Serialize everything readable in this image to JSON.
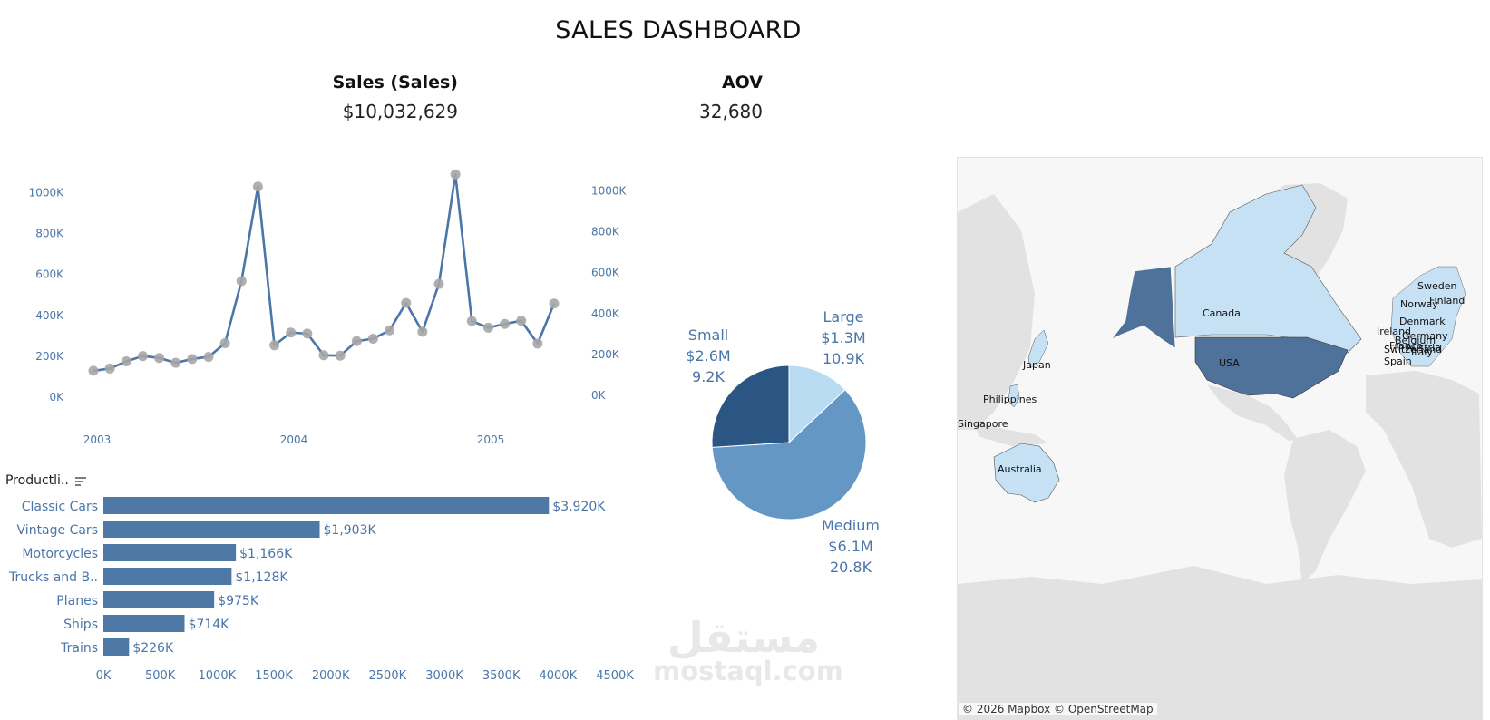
{
  "dashboard": {
    "title": "SALES DASHBOARD"
  },
  "kpis": [
    {
      "label": "Sales (Sales)",
      "value": "$10,032,629"
    },
    {
      "label": "AOV",
      "value": "32,680"
    }
  ],
  "colors": {
    "line": "#4a76a8",
    "marker": "#a6a6a6",
    "axis_text": "#4a76a8",
    "bar": "#4e79a7",
    "pie_large": "#b9dcf2",
    "pie_medium": "#6497c4",
    "pie_small": "#2b5683",
    "map_land": "#e2e2e2",
    "map_light": "#c6e1f4",
    "map_dark": "#4f729a"
  },
  "chart_data": [
    {
      "type": "line",
      "x_tick_labels": [
        "2003",
        "2004",
        "2005"
      ],
      "y_tick_labels_left": [
        "0K",
        "200K",
        "400K",
        "600K",
        "800K",
        "1000K"
      ],
      "y_tick_labels_right": [
        "0K",
        "200K",
        "400K",
        "600K",
        "800K",
        "1000K"
      ],
      "ylim": [
        0,
        1100000
      ],
      "grid": false,
      "series": [
        {
          "x": [
            "2003-01",
            "2003-02",
            "2003-03",
            "2003-04",
            "2003-05",
            "2003-06",
            "2003-07",
            "2003-08",
            "2003-09",
            "2003-10",
            "2003-11",
            "2003-12",
            "2004-01",
            "2004-02",
            "2004-03",
            "2004-04",
            "2004-05",
            "2004-06",
            "2004-07",
            "2004-08",
            "2004-09",
            "2004-10",
            "2004-11",
            "2004-12",
            "2005-01",
            "2005-02",
            "2005-03",
            "2005-04",
            "2005-05"
          ],
          "values": [
            129000,
            140000,
            175000,
            201000,
            192000,
            168000,
            187000,
            197000,
            264000,
            568000,
            1030000,
            254000,
            316000,
            311000,
            205000,
            203000,
            274000,
            286000,
            327000,
            461000,
            320000,
            554000,
            1090000,
            372000,
            340000,
            358000,
            374000,
            262000,
            458000
          ]
        }
      ]
    },
    {
      "type": "pie",
      "slices": [
        {
          "label": "Large",
          "sales": "$1.3M",
          "count": "10.9K",
          "value": 1.3
        },
        {
          "label": "Medium",
          "sales": "$6.1M",
          "count": "20.8K",
          "value": 6.1
        },
        {
          "label": "Small",
          "sales": "$2.6M",
          "count": "9.2K",
          "value": 2.6
        }
      ]
    },
    {
      "type": "bar",
      "orientation": "horizontal",
      "dimension_label": "Productli..",
      "categories": [
        "Classic Cars",
        "Vintage Cars",
        "Motorcycles",
        "Trucks and B..",
        "Planes",
        "Ships",
        "Trains"
      ],
      "values": [
        3920,
        1903,
        1166,
        1128,
        975,
        714,
        226
      ],
      "value_labels": [
        "$3,920K",
        "$1,903K",
        "$1,166K",
        "$1,128K",
        "$975K",
        "$714K",
        "$226K"
      ],
      "x_tick_labels": [
        "0K",
        "500K",
        "1000K",
        "1500K",
        "2000K",
        "2500K",
        "3000K",
        "3500K",
        "4000K",
        "4500K"
      ],
      "xlim": [
        0,
        4500
      ]
    }
  ],
  "map": {
    "labels": [
      "Canada",
      "USA",
      "Japan",
      "Philippines",
      "Singapore",
      "Australia",
      "Sweden",
      "Finland",
      "Norway",
      "Denmark",
      "Ireland",
      "Germany",
      "Belgium",
      "Switzerland",
      "Austria",
      "France",
      "Spain",
      "Italy"
    ],
    "attribution": "© 2026 Mapbox © OpenStreetMap"
  },
  "watermark": {
    "arabic": "مستقل",
    "latin": "mostaql.com"
  }
}
